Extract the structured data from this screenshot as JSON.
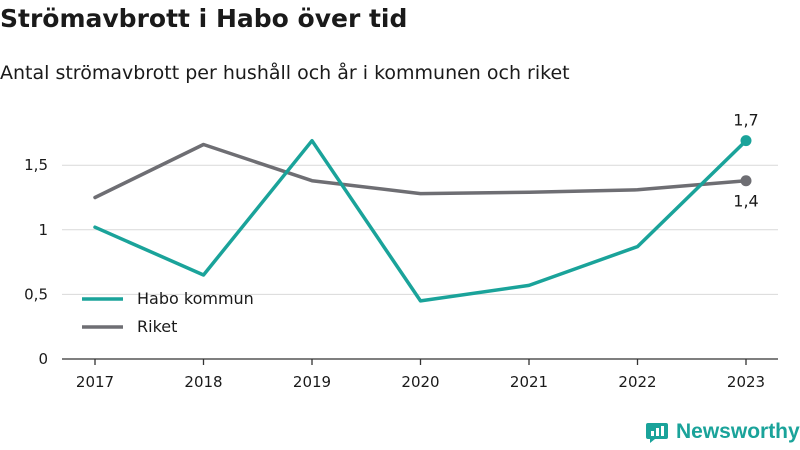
{
  "title": "Strömavbrott i Habo över tid",
  "subtitle": "Antal strömavbrott per hushåll och år i kommunen och riket",
  "brand": {
    "name": "Newsworthy"
  },
  "colors": {
    "habo": "#1aa39a",
    "riket": "#6e6e73",
    "grid": "#d9d9d9",
    "axis": "#333333",
    "brand": "#1aa39a"
  },
  "chart_data": {
    "type": "line",
    "x": [
      "2017",
      "2018",
      "2019",
      "2020",
      "2021",
      "2022",
      "2023"
    ],
    "yticks": [
      0,
      0.5,
      1,
      1.5
    ],
    "ytick_labels": [
      "0",
      "0,5",
      "1",
      "1,5"
    ],
    "ylim": [
      0,
      1.85
    ],
    "grid": true,
    "legend_position": "bottom-left",
    "series": [
      {
        "name": "Habo kommun",
        "color": "#1aa39a",
        "values": [
          1.02,
          0.65,
          1.69,
          0.45,
          0.57,
          0.87,
          1.69
        ],
        "end_label": "1,7"
      },
      {
        "name": "Riket",
        "color": "#6e6e73",
        "values": [
          1.25,
          1.66,
          1.38,
          1.28,
          1.29,
          1.31,
          1.38
        ],
        "end_label": "1,4"
      }
    ]
  }
}
